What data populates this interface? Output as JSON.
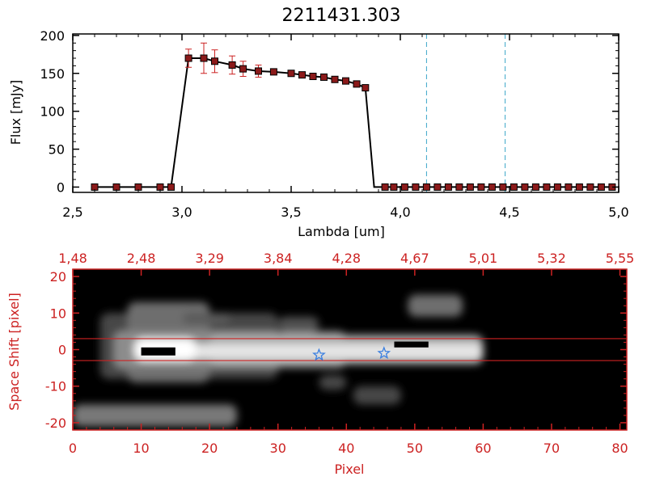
{
  "title": "2211431.303",
  "colors": {
    "axis_black": "#000000",
    "axis_red": "#cc2222",
    "marker_fill": "#8b1a1a",
    "error_bar": "#cc2222",
    "dashed_line": "#3aa6c8",
    "star": "#3a7fe0",
    "image_background": "#000000",
    "image_blob": "#ffffff"
  },
  "chart_data": [
    {
      "type": "line",
      "title": "2211431.303",
      "xlabel": "Lambda [um]",
      "ylabel": "Flux [mJy]",
      "xlim": [
        2.5,
        5.0
      ],
      "ylim": [
        -7,
        202
      ],
      "xticks": [
        "2.5",
        "3.0",
        "3.5",
        "4.0",
        "4.5",
        "5.0"
      ],
      "yticks": [
        "0",
        "50",
        "100",
        "150",
        "200"
      ],
      "grid": false,
      "x": [
        2.6,
        2.7,
        2.8,
        2.9,
        2.95,
        3.03,
        3.1,
        3.15,
        3.23,
        3.28,
        3.35,
        3.42,
        3.5,
        3.55,
        3.6,
        3.65,
        3.7,
        3.75,
        3.8,
        3.84,
        3.88,
        3.93,
        3.97,
        4.02,
        4.07,
        4.12,
        4.17,
        4.22,
        4.27,
        4.32,
        4.37,
        4.42,
        4.47,
        4.52,
        4.57,
        4.62,
        4.67,
        4.72,
        4.77,
        4.82,
        4.87,
        4.92,
        4.97
      ],
      "y": [
        0,
        0,
        0,
        0,
        0,
        170,
        170,
        166,
        161,
        156,
        153,
        152,
        150,
        148,
        146,
        145,
        142,
        140,
        136,
        131,
        0,
        0,
        0,
        0,
        0,
        0,
        0,
        0,
        0,
        0,
        0,
        0,
        0,
        0,
        0,
        0,
        0,
        0,
        0,
        0,
        0,
        0,
        0
      ],
      "errors": [
        0,
        0,
        0,
        0,
        0,
        12,
        20,
        15,
        12,
        10,
        8,
        0,
        0,
        0,
        0,
        0,
        0,
        0,
        0,
        0,
        0,
        0,
        0,
        0,
        0,
        0,
        0,
        0,
        0,
        0,
        0,
        0,
        0,
        0,
        0,
        0,
        0,
        0,
        0,
        0,
        0,
        0,
        0
      ],
      "markers": [
        true,
        true,
        true,
        true,
        true,
        true,
        true,
        true,
        true,
        true,
        true,
        true,
        true,
        true,
        true,
        true,
        true,
        true,
        true,
        true,
        false,
        true,
        true,
        true,
        true,
        true,
        true,
        true,
        true,
        true,
        true,
        true,
        true,
        true,
        true,
        true,
        true,
        true,
        true,
        true,
        true,
        true,
        true
      ],
      "vlines": [
        4.12,
        4.48
      ]
    },
    {
      "type": "heatmap",
      "xlabel": "Pixel",
      "ylabel": "Space Shift [pixel]",
      "xlim": [
        0,
        81
      ],
      "ylim": [
        -22,
        22
      ],
      "xticks": [
        "0",
        "10",
        "20",
        "30",
        "40",
        "50",
        "60",
        "70",
        "80"
      ],
      "yticks": [
        "-20",
        "-10",
        "0",
        "10",
        "20"
      ],
      "top_ticks": [
        "1.48",
        "2.48",
        "3.29",
        "3.84",
        "4.28",
        "4.67",
        "5.01",
        "5.32",
        "5.55"
      ],
      "hlines": [
        3,
        -3
      ],
      "stars": [
        {
          "x": 36,
          "y": -1.5
        },
        {
          "x": 45.5,
          "y": -1
        }
      ]
    }
  ]
}
